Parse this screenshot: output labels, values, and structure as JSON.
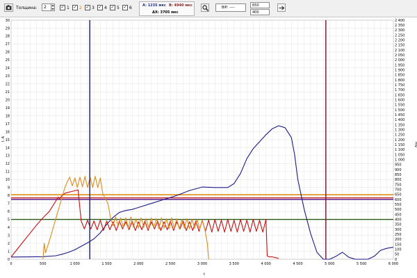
{
  "toolbar": {
    "camera_icon": "camera-icon",
    "thickness_label": "Толщина:",
    "thickness_value": "2",
    "channels": [
      {
        "label": "1",
        "checked": true,
        "color": "#000000"
      },
      {
        "label": "2",
        "checked": true,
        "color": "#e07a00"
      },
      {
        "label": "3",
        "checked": true,
        "color": "#000000"
      },
      {
        "label": "4",
        "checked": true,
        "color": "#000000"
      },
      {
        "label": "5",
        "checked": true,
        "color": "#000000"
      },
      {
        "label": "6",
        "checked": true,
        "color": "#000000"
      }
    ],
    "marker_a": "A: 1235 мкс",
    "marker_b": "B: 4940 мкс",
    "delta_x": "ΔX: 3705 мкс",
    "zoom_icon": "magnifier-icon",
    "bip_label": "ВIP: ----",
    "field_top": "650",
    "field_bottom": "400",
    "go_icon": "arrow-right-icon"
  },
  "chart_data": {
    "type": "line",
    "xlabel": "t",
    "ylabel_left": "I, A",
    "ylabel_right": "mV",
    "xlim": [
      0,
      6000
    ],
    "ylim_left": [
      0,
      30
    ],
    "ylim_right": [
      0,
      2400
    ],
    "grid": true,
    "x_ticks": [
      "0",
      "500",
      "1 000",
      "1 500",
      "2 000",
      "2 500",
      "3 000",
      "3 500",
      "4 000",
      "4 500",
      "5 000",
      "5 500",
      "6 000"
    ],
    "y_ticks_left": [
      "0",
      "1",
      "2",
      "3",
      "4",
      "5",
      "6",
      "7",
      "8",
      "9",
      "10",
      "11",
      "12",
      "13",
      "14",
      "15",
      "16",
      "17",
      "18",
      "19",
      "20",
      "21",
      "22",
      "23",
      "24",
      "25",
      "26",
      "27",
      "28",
      "29",
      "30"
    ],
    "y_ticks_right": [
      "0",
      "50",
      "100",
      "150",
      "200",
      "250",
      "300",
      "350",
      "400",
      "450",
      "500",
      "550",
      "600",
      "650",
      "700",
      "750",
      "800",
      "850",
      "900",
      "950",
      "1 000",
      "1 050",
      "1 100",
      "1 150",
      "1 200",
      "1 250",
      "1 300",
      "1 350",
      "1 400",
      "1 450",
      "1 500",
      "1 550",
      "1 600",
      "1 650",
      "1 700",
      "1 750",
      "1 800",
      "1 850",
      "1 900",
      "1 950",
      "2 000",
      "2 050",
      "2 100",
      "2 150",
      "2 200",
      "2 250",
      "2 300",
      "2 350",
      "2 400"
    ],
    "cursors": [
      {
        "x": 1235,
        "color": "#1c2a7a"
      },
      {
        "x": 4940,
        "color": "#7a1c3a"
      }
    ],
    "thresholds_left": [
      {
        "y": 8.1,
        "color": "#e08a00"
      },
      {
        "y": 7.7,
        "color": "#c02020"
      },
      {
        "y": 7.5,
        "color": "#5a1a8a"
      },
      {
        "y": 5.0,
        "color": "#2a5a1a"
      }
    ],
    "series": [
      {
        "axis": "right",
        "color": "#1a1a8a",
        "x": [
          0,
          300,
          500,
          700,
          800,
          900,
          1000,
          1100,
          1200,
          1300,
          1400,
          1500,
          1600,
          1700,
          1800,
          1900,
          2000,
          2200,
          2400,
          2600,
          2800,
          3000,
          3200,
          3400,
          3500,
          3600,
          3700,
          3800,
          3900,
          4000,
          4100,
          4200,
          4300,
          4400,
          4450,
          4500,
          4600,
          4700,
          4800,
          4900,
          5000,
          5100,
          5200,
          5300,
          5400,
          5500,
          5600,
          5700,
          5800,
          5900,
          6000
        ],
        "y": [
          22,
          24,
          26,
          35,
          50,
          70,
          95,
          130,
          165,
          205,
          265,
          350,
          420,
          470,
          490,
          500,
          520,
          560,
          600,
          640,
          690,
          725,
          720,
          720,
          760,
          860,
          1010,
          1110,
          1180,
          1250,
          1310,
          1340,
          1320,
          1220,
          1050,
          800,
          500,
          260,
          70,
          0,
          0,
          30,
          70,
          20,
          0,
          0,
          0,
          30,
          90,
          110,
          120
        ]
      },
      {
        "axis": "left",
        "color": "#c81010",
        "x": [
          0,
          100,
          200,
          300,
          400,
          500,
          600,
          700,
          740,
          760,
          800,
          850,
          900,
          950,
          1000,
          1050,
          1100,
          1150,
          1200,
          1250,
          1300,
          1350,
          1400,
          1450,
          1500,
          1550,
          1600,
          1650,
          1700,
          1750,
          1800,
          1850,
          1900,
          1950,
          2000,
          2050,
          2100,
          2150,
          2200,
          2250,
          2300,
          2350,
          2400,
          2450,
          2500,
          2550,
          2600,
          2650,
          2700,
          2750,
          2800,
          2850,
          2900,
          2950,
          3000,
          3050,
          3100,
          3150,
          3200,
          3250,
          3300,
          3350,
          3400,
          3450,
          3500,
          3550,
          3600,
          3650,
          3700,
          3750,
          3800,
          3850,
          3900,
          3950,
          4000,
          4020,
          4050,
          4100,
          4150,
          4200
        ],
        "y": [
          0.3,
          1.3,
          2.3,
          3.3,
          4.3,
          5.2,
          6.0,
          7.3,
          7.8,
          7.6,
          8.0,
          8.3,
          8.4,
          8.5,
          8.6,
          8.7,
          4.8,
          3.8,
          4.9,
          3.8,
          4.8,
          3.7,
          4.9,
          3.6,
          4.8,
          3.7,
          4.7,
          3.6,
          4.8,
          3.8,
          4.7,
          3.7,
          4.8,
          3.6,
          4.7,
          3.7,
          4.8,
          3.6,
          4.7,
          3.8,
          4.8,
          3.6,
          4.7,
          3.7,
          4.8,
          3.6,
          4.7,
          3.8,
          4.8,
          3.6,
          4.7,
          3.6,
          4.8,
          3.5,
          4.9,
          3.5,
          4.9,
          3.4,
          5.0,
          3.5,
          4.9,
          3.4,
          5.0,
          3.5,
          4.9,
          3.4,
          5.0,
          3.5,
          4.9,
          3.4,
          5.0,
          3.5,
          4.9,
          3.4,
          5.0,
          0.4,
          0.3,
          0.3,
          0.2,
          0.1
        ]
      },
      {
        "axis": "left",
        "color": "#e08a1a",
        "x": [
          500,
          520,
          540,
          560,
          600,
          640,
          680,
          720,
          760,
          800,
          840,
          880,
          920,
          960,
          1000,
          1040,
          1080,
          1120,
          1160,
          1200,
          1240,
          1280,
          1320,
          1360,
          1400,
          1440,
          1480,
          1520,
          1560,
          1600,
          1640,
          1680,
          1720,
          1760,
          1800,
          1840,
          1880,
          1920,
          1960,
          2000,
          2040,
          2080,
          2120,
          2160,
          2200,
          2240,
          2280,
          2320,
          2360,
          2400,
          2440,
          2480,
          2520,
          2560,
          2600,
          2640,
          2680,
          2720,
          2760,
          2800,
          2840,
          2880,
          2920,
          2960,
          3000,
          3040,
          3080,
          3100
        ],
        "y": [
          0.0,
          2.0,
          0.8,
          1.3,
          2.3,
          3.4,
          4.5,
          5.6,
          6.7,
          7.8,
          8.9,
          9.7,
          10.3,
          9.2,
          10.2,
          9.0,
          10.3,
          9.1,
          10.4,
          9.0,
          10.3,
          9.0,
          10.4,
          9.0,
          10.2,
          8.2,
          7.6,
          7.0,
          5.2,
          4.2,
          5.3,
          4.1,
          5.2,
          4.0,
          5.2,
          3.9,
          5.3,
          4.0,
          5.1,
          3.9,
          5.2,
          4.0,
          5.1,
          3.9,
          5.2,
          4.0,
          5.1,
          3.8,
          5.2,
          3.9,
          5.1,
          3.8,
          5.2,
          3.9,
          5.1,
          3.8,
          5.0,
          3.9,
          5.1,
          3.8,
          5.0,
          3.9,
          5.0,
          3.8,
          4.9,
          3.8,
          2.0,
          0.0
        ]
      }
    ]
  }
}
